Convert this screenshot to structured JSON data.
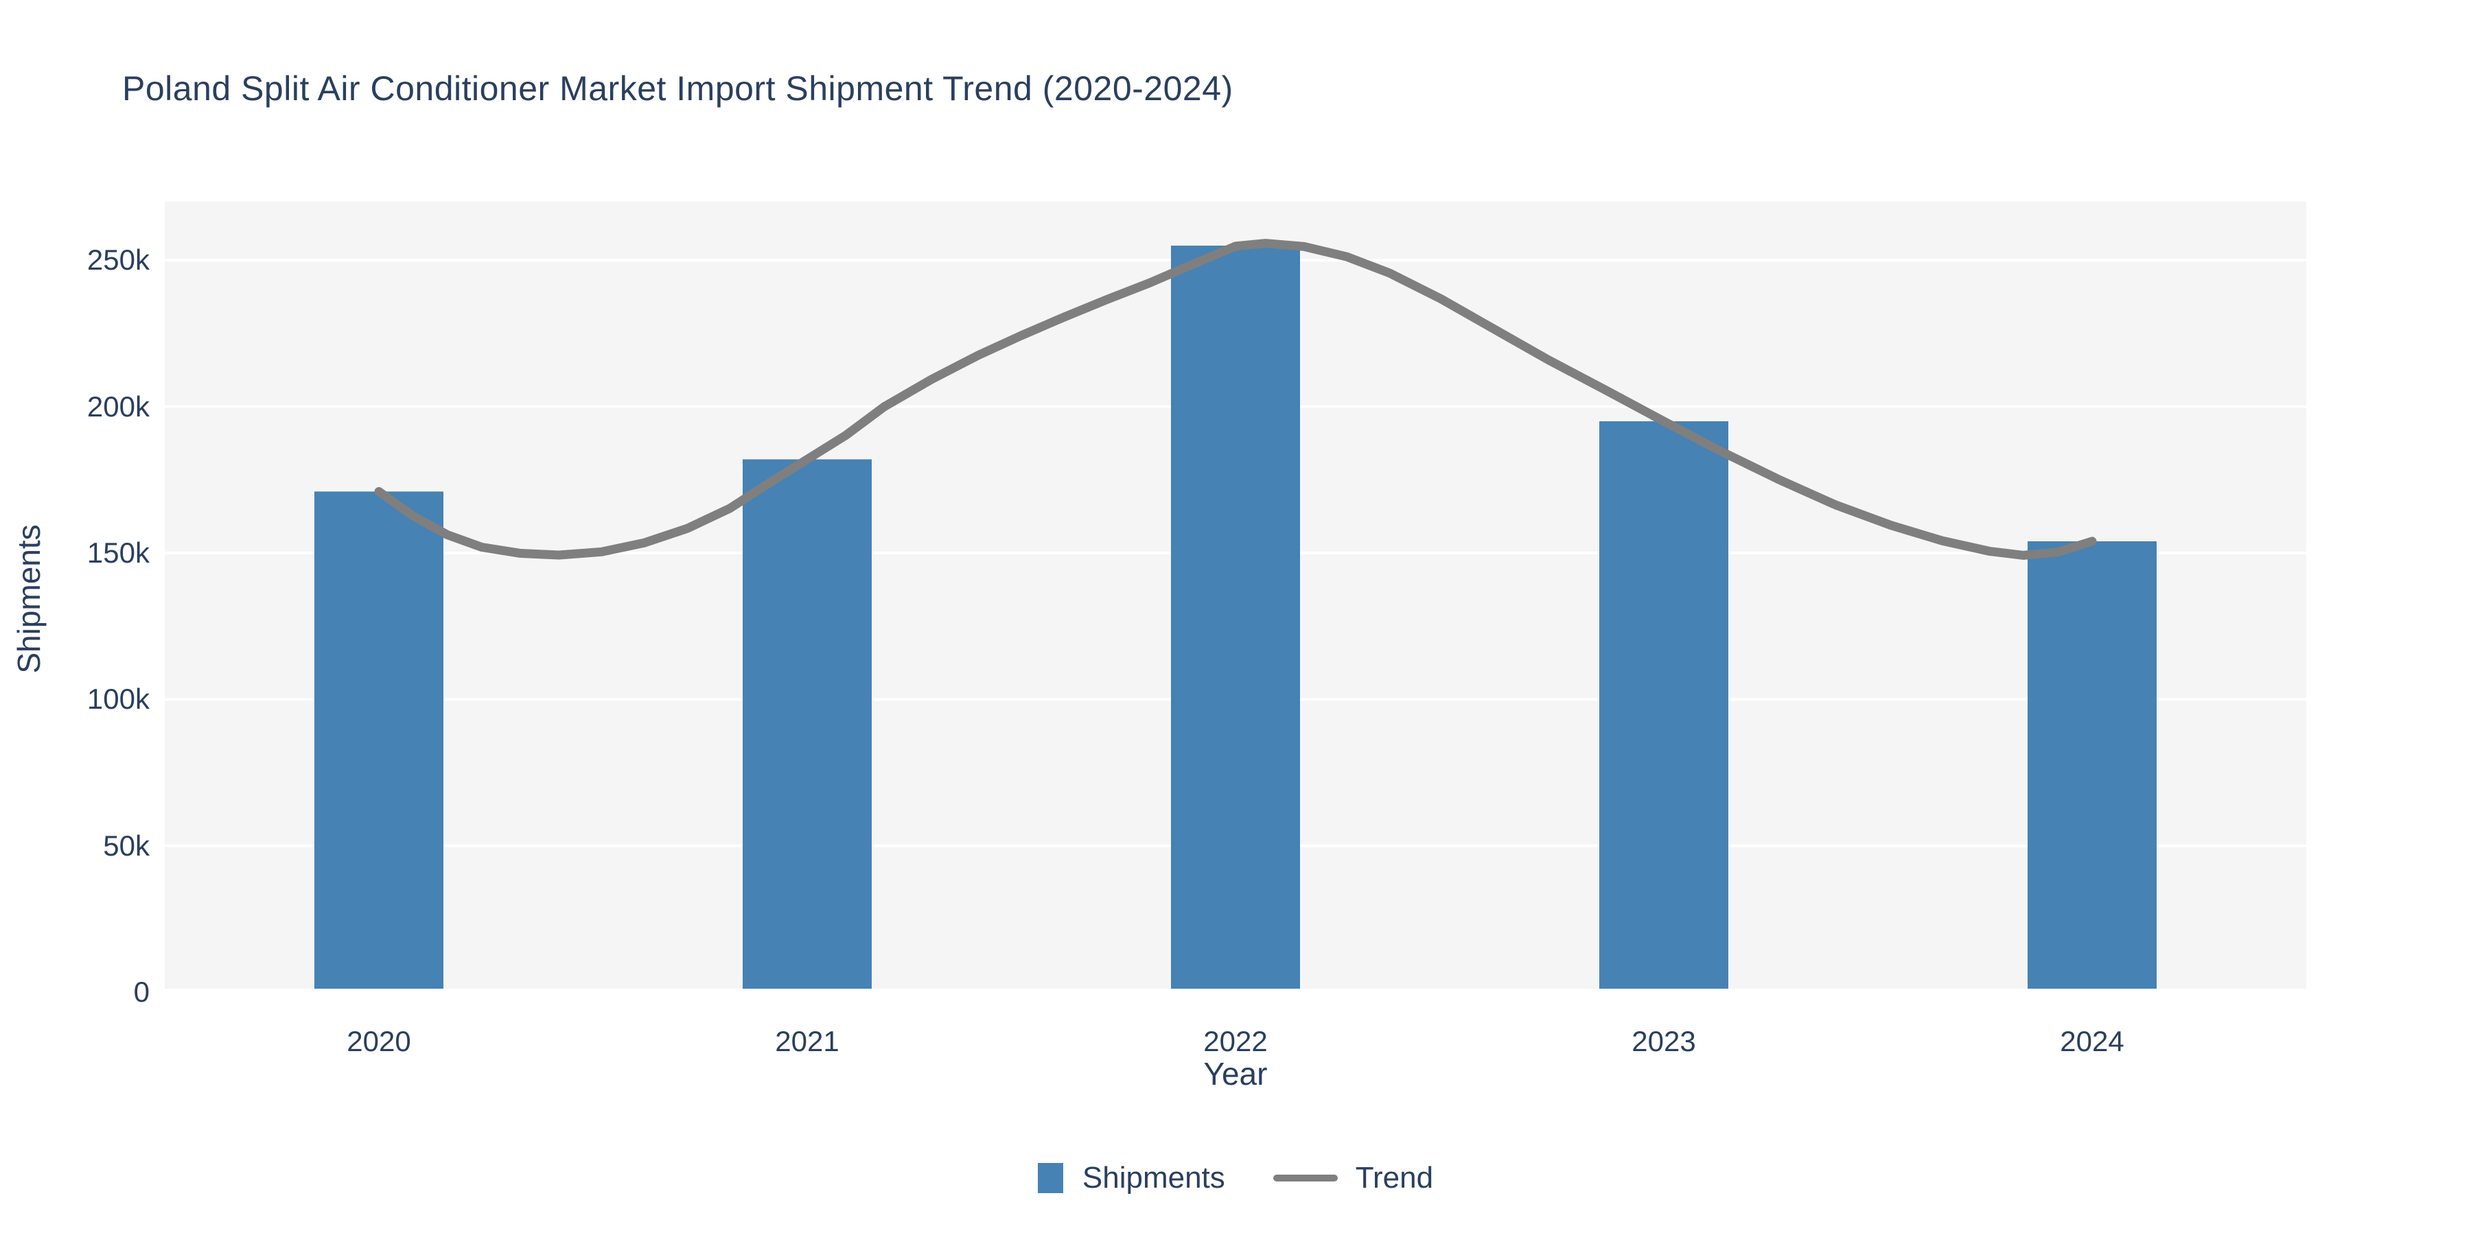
{
  "chart": {
    "title": "Poland Split Air Conditioner Market Import Shipment Trend (2020-2024)",
    "x_axis_title": "Year",
    "y_axis_title": "Shipments"
  },
  "chart_data": {
    "type": "bar",
    "title": "Poland Split Air Conditioner Market Import Shipment Trend (2020-2024)",
    "xlabel": "Year",
    "ylabel": "Shipments",
    "categories": [
      "2020",
      "2021",
      "2022",
      "2023",
      "2024"
    ],
    "series": [
      {
        "name": "Shipments",
        "type": "bar",
        "color": "#4682b4",
        "values": [
          171000,
          182000,
          255000,
          195000,
          154000
        ]
      },
      {
        "name": "Trend",
        "type": "line",
        "color": "#7f7f7f",
        "smoothed_points": [
          [
            2020.0,
            171000
          ],
          [
            2020.08,
            162600
          ],
          [
            2020.16,
            156200
          ],
          [
            2020.24,
            152000
          ],
          [
            2020.33,
            149900
          ],
          [
            2020.42,
            149300
          ],
          [
            2020.52,
            150400
          ],
          [
            2020.62,
            153500
          ],
          [
            2020.72,
            158400
          ],
          [
            2020.82,
            165300
          ],
          [
            2020.91,
            173800
          ],
          [
            2021.0,
            182000
          ],
          [
            2021.09,
            190200
          ],
          [
            2021.18,
            200000
          ],
          [
            2021.29,
            209300
          ],
          [
            2021.4,
            217600
          ],
          [
            2021.5,
            224300
          ],
          [
            2021.6,
            230600
          ],
          [
            2021.7,
            236600
          ],
          [
            2021.8,
            242300
          ],
          [
            2021.9,
            248600
          ],
          [
            2022.0,
            254800
          ],
          [
            2022.07,
            255800
          ],
          [
            2022.16,
            254700
          ],
          [
            2022.26,
            251200
          ],
          [
            2022.36,
            245600
          ],
          [
            2022.48,
            236800
          ],
          [
            2022.6,
            226800
          ],
          [
            2022.73,
            216000
          ],
          [
            2022.86,
            206000
          ],
          [
            2023.0,
            195000
          ],
          [
            2023.13,
            185000
          ],
          [
            2023.27,
            175000
          ],
          [
            2023.4,
            166500
          ],
          [
            2023.53,
            159500
          ],
          [
            2023.65,
            154200
          ],
          [
            2023.76,
            150600
          ],
          [
            2023.84,
            149200
          ],
          [
            2023.92,
            150300
          ],
          [
            2024.0,
            154000
          ]
        ]
      }
    ],
    "ylim": [
      0,
      270000
    ],
    "yticks": [
      [
        0,
        "0"
      ],
      [
        50000,
        "50k"
      ],
      [
        100000,
        "100k"
      ],
      [
        150000,
        "150k"
      ],
      [
        200000,
        "200k"
      ],
      [
        250000,
        "250k"
      ]
    ],
    "grid": true,
    "legend_position": "bottom-center",
    "colors": {
      "plot_bg": "#f5f5f5",
      "grid": "#ffffff",
      "text": "#2a3f5f",
      "bar": "#4682b4",
      "trend": "#7f7f7f"
    }
  }
}
